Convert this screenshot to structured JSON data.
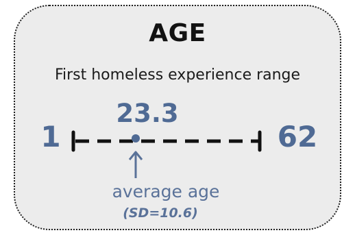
{
  "title": "AGE",
  "subtitle": "First homeless experience range",
  "range": {
    "min": "1",
    "max": "62",
    "average": "23.3",
    "average_label": "average age",
    "sd_label": "(SD=10.6)"
  },
  "colors": {
    "accent": "#4f6a94",
    "card_background": "#ececec",
    "line": "#111111"
  }
}
